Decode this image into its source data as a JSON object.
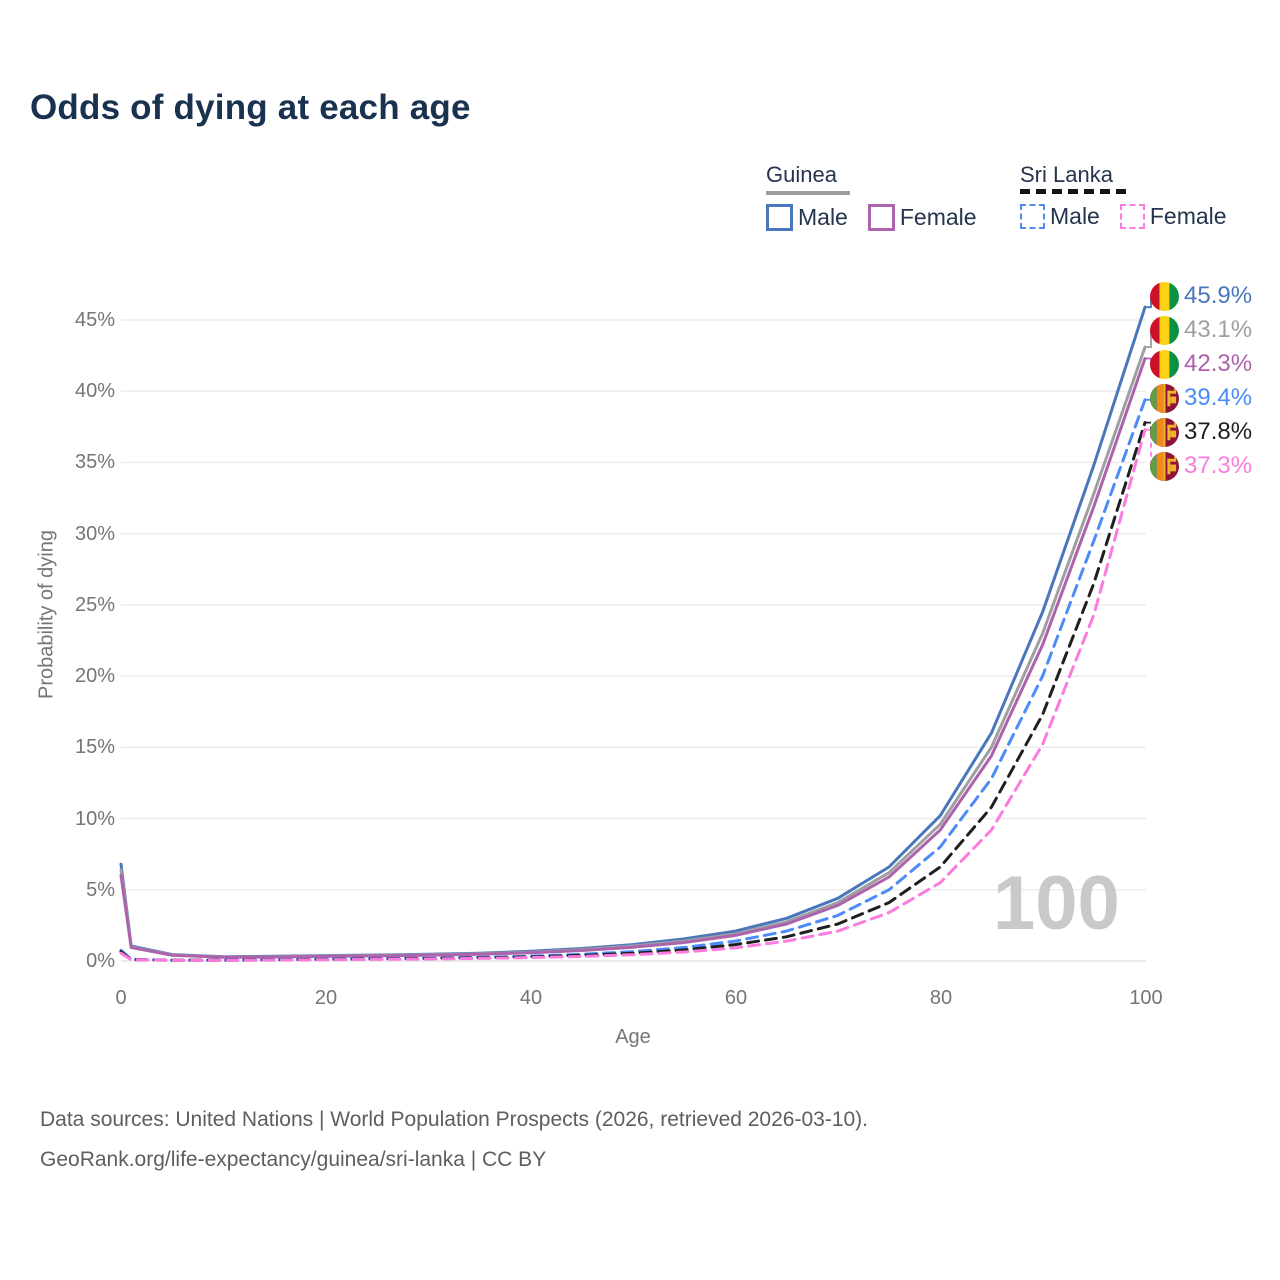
{
  "title": "Odds of dying at each age",
  "legend": {
    "groups": [
      {
        "label": "Guinea",
        "line_style": "solid",
        "underline_color": "#9e9e9e",
        "items": [
          {
            "label": "Male",
            "color": "#4a77bb"
          },
          {
            "label": "Female",
            "color": "#ad62ac"
          }
        ]
      },
      {
        "label": "Sri Lanka",
        "line_style": "dashed",
        "underline_color": "#141414",
        "items": [
          {
            "label": "Male",
            "color": "#4c8bf8"
          },
          {
            "label": "Female",
            "color": "#fb7bde"
          }
        ]
      }
    ]
  },
  "axes": {
    "y": {
      "title": "Probability of dying",
      "ticks": [
        "0%",
        "5%",
        "10%",
        "15%",
        "20%",
        "25%",
        "30%",
        "35%",
        "40%",
        "45%"
      ]
    },
    "x": {
      "title": "Age",
      "ticks": [
        "0",
        "20",
        "40",
        "60",
        "80",
        "100"
      ]
    }
  },
  "watermark": "100",
  "end_labels": [
    {
      "value": "45.9%",
      "country": "Guinea",
      "flag": "guinea-flag-icon"
    },
    {
      "value": "43.1%",
      "country": "Guinea",
      "flag": "guinea-flag-icon"
    },
    {
      "value": "42.3%",
      "country": "Guinea",
      "flag": "guinea-flag-icon"
    },
    {
      "value": "39.4%",
      "country": "Sri Lanka",
      "flag": "sri-lanka-flag-icon"
    },
    {
      "value": "37.8%",
      "country": "Sri Lanka",
      "flag": "sri-lanka-flag-icon"
    },
    {
      "value": "37.3%",
      "country": "Sri Lanka",
      "flag": "sri-lanka-flag-icon"
    }
  ],
  "footer": {
    "line1": "Data sources: United Nations | World Population Prospects (2026, retrieved 2026-03-10).",
    "line2": "GeoRank.org/life-expectancy/guinea/sri-lanka | CC BY"
  },
  "chart_data": {
    "type": "line",
    "title": "Odds of dying at each age",
    "xlabel": "Age",
    "ylabel": "Probability of dying",
    "xlim": [
      0,
      100
    ],
    "ylim": [
      0,
      47
    ],
    "grid": "horizontal",
    "legend_position": "top-right",
    "x_ticks_values": [
      0,
      20,
      40,
      60,
      80,
      100
    ],
    "y_ticks_values": [
      0,
      5,
      10,
      15,
      20,
      25,
      30,
      35,
      40,
      45
    ],
    "x": [
      0,
      1,
      5,
      10,
      15,
      20,
      25,
      30,
      35,
      40,
      45,
      50,
      55,
      60,
      65,
      70,
      75,
      80,
      85,
      90,
      95,
      100
    ],
    "series": [
      {
        "name": "Guinea Male",
        "country": "Guinea",
        "sex": "Male",
        "color": "#4a77bb",
        "dash": "solid",
        "end_label": "45.9%",
        "values": [
          6.8,
          1.05,
          0.45,
          0.3,
          0.33,
          0.38,
          0.42,
          0.47,
          0.55,
          0.68,
          0.88,
          1.15,
          1.55,
          2.1,
          3.0,
          4.4,
          6.6,
          10.2,
          16.0,
          24.5,
          34.8,
          45.9
        ]
      },
      {
        "name": "Guinea Both sexes",
        "country": "Guinea",
        "sex": "Both",
        "color": "#9e9ea3",
        "dash": "solid",
        "end_label": "43.1%",
        "values": [
          6.4,
          1.0,
          0.42,
          0.28,
          0.3,
          0.35,
          0.39,
          0.44,
          0.51,
          0.62,
          0.8,
          1.05,
          1.4,
          1.9,
          2.75,
          4.1,
          6.2,
          9.6,
          15.0,
          23.0,
          32.8,
          43.1
        ]
      },
      {
        "name": "Guinea Female",
        "country": "Guinea",
        "sex": "Female",
        "color": "#ad62ac",
        "dash": "solid",
        "end_label": "42.3%",
        "values": [
          6.0,
          0.95,
          0.4,
          0.26,
          0.28,
          0.32,
          0.36,
          0.41,
          0.48,
          0.58,
          0.74,
          0.97,
          1.3,
          1.8,
          2.6,
          3.9,
          5.9,
          9.2,
          14.4,
          22.2,
          31.9,
          42.3
        ]
      },
      {
        "name": "Sri Lanka Male",
        "country": "Sri Lanka",
        "sex": "Male",
        "color": "#4c8bf8",
        "dash": "dashed",
        "end_label": "39.4%",
        "values": [
          0.75,
          0.12,
          0.06,
          0.06,
          0.09,
          0.13,
          0.16,
          0.2,
          0.26,
          0.34,
          0.47,
          0.66,
          0.95,
          1.4,
          2.1,
          3.2,
          5.0,
          8.0,
          12.8,
          20.0,
          29.5,
          39.4
        ]
      },
      {
        "name": "Sri Lanka Both sexes",
        "country": "Sri Lanka",
        "sex": "Both",
        "color": "#1f1f1f",
        "dash": "dashed",
        "end_label": "37.8%",
        "values": [
          0.65,
          0.1,
          0.05,
          0.05,
          0.08,
          0.11,
          0.14,
          0.17,
          0.22,
          0.29,
          0.39,
          0.54,
          0.78,
          1.15,
          1.7,
          2.6,
          4.1,
          6.6,
          10.8,
          17.3,
          26.5,
          37.8
        ]
      },
      {
        "name": "Sri Lanka Female",
        "country": "Sri Lanka",
        "sex": "Female",
        "color": "#fb7bde",
        "dash": "dashed",
        "end_label": "37.3%",
        "values": [
          0.55,
          0.09,
          0.05,
          0.04,
          0.06,
          0.09,
          0.11,
          0.14,
          0.18,
          0.24,
          0.32,
          0.44,
          0.63,
          0.92,
          1.4,
          2.1,
          3.4,
          5.5,
          9.2,
          15.2,
          24.3,
          37.3
        ]
      }
    ]
  }
}
